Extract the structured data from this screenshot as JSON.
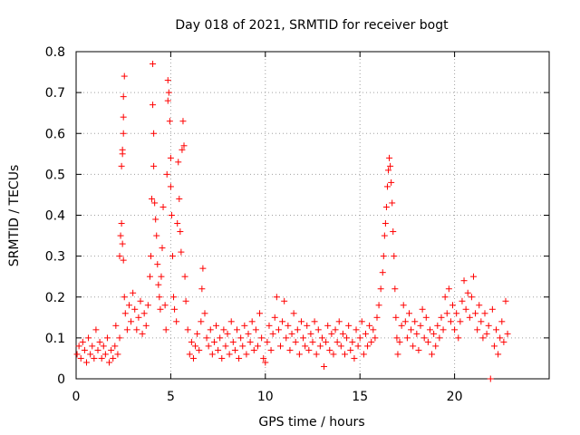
{
  "chart_data": {
    "type": "scatter",
    "title": "Day 018 of 2021, SRMTID for receiver bogt",
    "xlabel": "GPS time / hours",
    "ylabel": "SRMTID / TECUs",
    "xlim": [
      0,
      25
    ],
    "ylim": [
      0,
      0.8
    ],
    "xticks": [
      0,
      5,
      10,
      15,
      20
    ],
    "yticks": [
      0,
      0.1,
      0.2,
      0.3,
      0.4,
      0.5,
      0.6,
      0.7,
      0.8
    ],
    "ytick_labels": [
      "0",
      "0.1",
      "0.2",
      "0.3",
      "0.4",
      "0.5",
      "0.6",
      "0.7",
      "0.8"
    ],
    "xtick_labels": [
      "0",
      "5",
      "10",
      "15",
      "20"
    ],
    "grid": true,
    "marker": "plus",
    "color": "#ff0000",
    "series": [
      {
        "name": "SRMTID",
        "points": [
          [
            0.05,
            0.06
          ],
          [
            0.15,
            0.08
          ],
          [
            0.25,
            0.05
          ],
          [
            0.35,
            0.09
          ],
          [
            0.45,
            0.07
          ],
          [
            0.55,
            0.04
          ],
          [
            0.65,
            0.1
          ],
          [
            0.75,
            0.06
          ],
          [
            0.85,
            0.08
          ],
          [
            0.95,
            0.05
          ],
          [
            1.05,
            0.12
          ],
          [
            1.15,
            0.07
          ],
          [
            1.25,
            0.09
          ],
          [
            1.35,
            0.05
          ],
          [
            1.45,
            0.08
          ],
          [
            1.55,
            0.06
          ],
          [
            1.65,
            0.1
          ],
          [
            1.75,
            0.04
          ],
          [
            1.85,
            0.07
          ],
          [
            1.95,
            0.05
          ],
          [
            2.05,
            0.08
          ],
          [
            2.1,
            0.13
          ],
          [
            2.2,
            0.06
          ],
          [
            2.3,
            0.1
          ],
          [
            2.3,
            0.3
          ],
          [
            2.35,
            0.35
          ],
          [
            2.4,
            0.38
          ],
          [
            2.45,
            0.55
          ],
          [
            2.45,
            0.56
          ],
          [
            2.5,
            0.6
          ],
          [
            2.5,
            0.69
          ],
          [
            2.55,
            0.74
          ],
          [
            2.5,
            0.64
          ],
          [
            2.4,
            0.52
          ],
          [
            2.45,
            0.33
          ],
          [
            2.5,
            0.29
          ],
          [
            2.55,
            0.2
          ],
          [
            2.6,
            0.16
          ],
          [
            2.7,
            0.12
          ],
          [
            2.8,
            0.18
          ],
          [
            2.9,
            0.14
          ],
          [
            3.0,
            0.21
          ],
          [
            3.1,
            0.17
          ],
          [
            3.2,
            0.12
          ],
          [
            3.3,
            0.15
          ],
          [
            3.4,
            0.19
          ],
          [
            3.5,
            0.11
          ],
          [
            3.6,
            0.16
          ],
          [
            3.7,
            0.13
          ],
          [
            3.8,
            0.18
          ],
          [
            3.9,
            0.25
          ],
          [
            3.95,
            0.3
          ],
          [
            4.0,
            0.44
          ],
          [
            4.05,
            0.77
          ],
          [
            4.05,
            0.67
          ],
          [
            4.1,
            0.6
          ],
          [
            4.1,
            0.52
          ],
          [
            4.15,
            0.43
          ],
          [
            4.2,
            0.39
          ],
          [
            4.25,
            0.35
          ],
          [
            4.3,
            0.28
          ],
          [
            4.35,
            0.23
          ],
          [
            4.4,
            0.2
          ],
          [
            4.45,
            0.17
          ],
          [
            4.5,
            0.25
          ],
          [
            4.55,
            0.32
          ],
          [
            4.6,
            0.42
          ],
          [
            4.7,
            0.18
          ],
          [
            4.75,
            0.12
          ],
          [
            4.8,
            0.5
          ],
          [
            4.85,
            0.68
          ],
          [
            4.85,
            0.73
          ],
          [
            4.9,
            0.7
          ],
          [
            4.95,
            0.63
          ],
          [
            5.0,
            0.54
          ],
          [
            5.0,
            0.47
          ],
          [
            5.05,
            0.4
          ],
          [
            5.1,
            0.3
          ],
          [
            5.15,
            0.2
          ],
          [
            5.2,
            0.17
          ],
          [
            5.3,
            0.14
          ],
          [
            5.35,
            0.38
          ],
          [
            5.4,
            0.53
          ],
          [
            5.45,
            0.44
          ],
          [
            5.5,
            0.36
          ],
          [
            5.55,
            0.31
          ],
          [
            5.6,
            0.56
          ],
          [
            5.65,
            0.63
          ],
          [
            5.7,
            0.57
          ],
          [
            5.75,
            0.25
          ],
          [
            5.8,
            0.19
          ],
          [
            5.9,
            0.12
          ],
          [
            6.0,
            0.06
          ],
          [
            6.1,
            0.09
          ],
          [
            6.2,
            0.05
          ],
          [
            6.3,
            0.08
          ],
          [
            6.4,
            0.11
          ],
          [
            6.5,
            0.07
          ],
          [
            6.6,
            0.14
          ],
          [
            6.65,
            0.22
          ],
          [
            6.7,
            0.27
          ],
          [
            6.8,
            0.16
          ],
          [
            6.9,
            0.1
          ],
          [
            7.0,
            0.08
          ],
          [
            7.1,
            0.12
          ],
          [
            7.2,
            0.06
          ],
          [
            7.3,
            0.09
          ],
          [
            7.4,
            0.13
          ],
          [
            7.5,
            0.07
          ],
          [
            7.6,
            0.1
          ],
          [
            7.7,
            0.05
          ],
          [
            7.8,
            0.12
          ],
          [
            7.9,
            0.08
          ],
          [
            8.0,
            0.11
          ],
          [
            8.1,
            0.06
          ],
          [
            8.2,
            0.14
          ],
          [
            8.3,
            0.09
          ],
          [
            8.4,
            0.07
          ],
          [
            8.5,
            0.12
          ],
          [
            8.6,
            0.05
          ],
          [
            8.7,
            0.1
          ],
          [
            8.8,
            0.08
          ],
          [
            8.9,
            0.13
          ],
          [
            9.0,
            0.06
          ],
          [
            9.1,
            0.11
          ],
          [
            9.2,
            0.09
          ],
          [
            9.3,
            0.14
          ],
          [
            9.4,
            0.07
          ],
          [
            9.5,
            0.12
          ],
          [
            9.6,
            0.08
          ],
          [
            9.7,
            0.16
          ],
          [
            9.8,
            0.1
          ],
          [
            9.9,
            0.05
          ],
          [
            10.0,
            0.04
          ],
          [
            10.1,
            0.09
          ],
          [
            10.2,
            0.13
          ],
          [
            10.3,
            0.07
          ],
          [
            10.4,
            0.11
          ],
          [
            10.5,
            0.15
          ],
          [
            10.6,
            0.2
          ],
          [
            10.7,
            0.12
          ],
          [
            10.8,
            0.08
          ],
          [
            10.9,
            0.14
          ],
          [
            11.0,
            0.19
          ],
          [
            11.1,
            0.1
          ],
          [
            11.2,
            0.13
          ],
          [
            11.3,
            0.07
          ],
          [
            11.4,
            0.11
          ],
          [
            11.5,
            0.16
          ],
          [
            11.6,
            0.09
          ],
          [
            11.7,
            0.12
          ],
          [
            11.8,
            0.06
          ],
          [
            11.9,
            0.14
          ],
          [
            12.0,
            0.1
          ],
          [
            12.1,
            0.08
          ],
          [
            12.2,
            0.13
          ],
          [
            12.3,
            0.07
          ],
          [
            12.4,
            0.11
          ],
          [
            12.5,
            0.09
          ],
          [
            12.6,
            0.14
          ],
          [
            12.7,
            0.06
          ],
          [
            12.8,
            0.12
          ],
          [
            12.9,
            0.08
          ],
          [
            13.0,
            0.1
          ],
          [
            13.1,
            0.03
          ],
          [
            13.2,
            0.09
          ],
          [
            13.3,
            0.13
          ],
          [
            13.4,
            0.07
          ],
          [
            13.5,
            0.11
          ],
          [
            13.6,
            0.06
          ],
          [
            13.7,
            0.12
          ],
          [
            13.8,
            0.09
          ],
          [
            13.9,
            0.14
          ],
          [
            14.0,
            0.08
          ],
          [
            14.1,
            0.11
          ],
          [
            14.2,
            0.06
          ],
          [
            14.3,
            0.1
          ],
          [
            14.4,
            0.13
          ],
          [
            14.5,
            0.07
          ],
          [
            14.6,
            0.09
          ],
          [
            14.7,
            0.05
          ],
          [
            14.8,
            0.12
          ],
          [
            14.9,
            0.08
          ],
          [
            15.0,
            0.1
          ],
          [
            15.1,
            0.14
          ],
          [
            15.2,
            0.06
          ],
          [
            15.3,
            0.11
          ],
          [
            15.4,
            0.08
          ],
          [
            15.5,
            0.13
          ],
          [
            15.6,
            0.09
          ],
          [
            15.7,
            0.12
          ],
          [
            15.8,
            0.1
          ],
          [
            15.9,
            0.15
          ],
          [
            16.0,
            0.18
          ],
          [
            16.1,
            0.22
          ],
          [
            16.2,
            0.26
          ],
          [
            16.25,
            0.3
          ],
          [
            16.3,
            0.35
          ],
          [
            16.35,
            0.38
          ],
          [
            16.4,
            0.42
          ],
          [
            16.45,
            0.47
          ],
          [
            16.5,
            0.51
          ],
          [
            16.55,
            0.54
          ],
          [
            16.6,
            0.52
          ],
          [
            16.65,
            0.48
          ],
          [
            16.7,
            0.43
          ],
          [
            16.75,
            0.36
          ],
          [
            16.8,
            0.3
          ],
          [
            16.85,
            0.22
          ],
          [
            16.9,
            0.15
          ],
          [
            16.95,
            0.1
          ],
          [
            17.0,
            0.06
          ],
          [
            17.1,
            0.09
          ],
          [
            17.2,
            0.13
          ],
          [
            17.3,
            0.18
          ],
          [
            17.4,
            0.14
          ],
          [
            17.5,
            0.1
          ],
          [
            17.6,
            0.16
          ],
          [
            17.7,
            0.12
          ],
          [
            17.8,
            0.08
          ],
          [
            17.9,
            0.14
          ],
          [
            18.0,
            0.11
          ],
          [
            18.1,
            0.07
          ],
          [
            18.2,
            0.13
          ],
          [
            18.3,
            0.17
          ],
          [
            18.4,
            0.1
          ],
          [
            18.5,
            0.15
          ],
          [
            18.6,
            0.09
          ],
          [
            18.7,
            0.12
          ],
          [
            18.8,
            0.06
          ],
          [
            18.9,
            0.11
          ],
          [
            19.0,
            0.08
          ],
          [
            19.1,
            0.13
          ],
          [
            19.2,
            0.1
          ],
          [
            19.3,
            0.15
          ],
          [
            19.4,
            0.12
          ],
          [
            19.5,
            0.2
          ],
          [
            19.6,
            0.16
          ],
          [
            19.7,
            0.22
          ],
          [
            19.8,
            0.14
          ],
          [
            19.9,
            0.18
          ],
          [
            20.0,
            0.12
          ],
          [
            20.1,
            0.16
          ],
          [
            20.2,
            0.1
          ],
          [
            20.3,
            0.14
          ],
          [
            20.4,
            0.19
          ],
          [
            20.5,
            0.24
          ],
          [
            20.6,
            0.17
          ],
          [
            20.7,
            0.21
          ],
          [
            20.8,
            0.15
          ],
          [
            20.9,
            0.2
          ],
          [
            21.0,
            0.25
          ],
          [
            21.1,
            0.16
          ],
          [
            21.2,
            0.12
          ],
          [
            21.3,
            0.18
          ],
          [
            21.4,
            0.14
          ],
          [
            21.5,
            0.1
          ],
          [
            21.6,
            0.16
          ],
          [
            21.7,
            0.11
          ],
          [
            21.8,
            0.13
          ],
          [
            21.9,
            0.0
          ],
          [
            22.0,
            0.17
          ],
          [
            22.1,
            0.08
          ],
          [
            22.2,
            0.12
          ],
          [
            22.3,
            0.06
          ],
          [
            22.4,
            0.1
          ],
          [
            22.5,
            0.14
          ],
          [
            22.6,
            0.09
          ],
          [
            22.7,
            0.19
          ],
          [
            22.8,
            0.11
          ]
        ]
      }
    ]
  }
}
